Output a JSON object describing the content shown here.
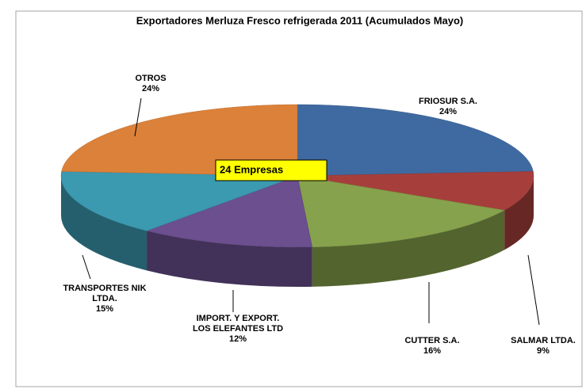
{
  "chart_data": {
    "type": "pie3d",
    "title": "Exportadores Merluza Fresco refrigerada 2011 (Acumulados Mayo)",
    "categories": [
      "FRIOSUR S.A.",
      "SALMAR LTDA.",
      "CUTTER S.A.",
      "IMPORT. Y EXPORT. LOS ELEFANTES LTD",
      "TRANSPORTES NIK LTDA.",
      "OTROS"
    ],
    "values": [
      24,
      9,
      16,
      12,
      15,
      24
    ],
    "value_labels": [
      "24%",
      "9%",
      "16%",
      "12%",
      "15%",
      "24%"
    ],
    "colors": [
      "#3f6aa1",
      "#a63f3c",
      "#86a24c",
      "#6b4f8e",
      "#3b99b0",
      "#dc8139"
    ],
    "annotation": "24 Empresas"
  }
}
